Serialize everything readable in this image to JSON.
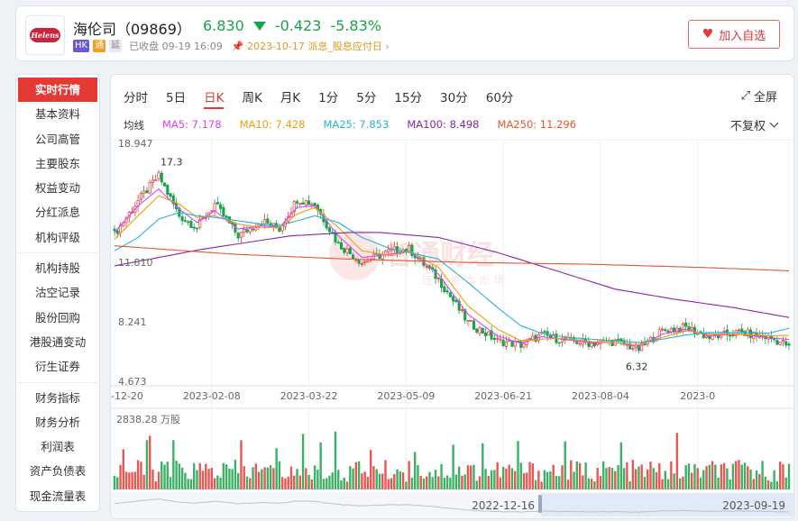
{
  "header": {
    "name": "海伦司（09869）",
    "price": "6.830",
    "change": "-0.423",
    "change_pct": "-5.83%",
    "tags": [
      "HK",
      "通",
      "延"
    ],
    "status": "已收盘 09-19 16:09",
    "dividend_text": "2023-10-17 派息_股息应付日",
    "favorite_label": "加入自选",
    "logo_text": "Helens",
    "up_color": "#e53935",
    "down_color": "#1aa34a"
  },
  "sidebar": {
    "groups": [
      [
        "实时行情",
        "基本资料",
        "公司高管",
        "主要股东",
        "权益变动",
        "分红派息",
        "机构评级"
      ],
      [
        "机构持股",
        "沽空记录",
        "股份回购",
        "港股通变动",
        "衍生证券"
      ],
      [
        "财务指标",
        "财务分析",
        "利润表",
        "资产负债表",
        "现金流量表"
      ]
    ],
    "active": "实时行情"
  },
  "chart": {
    "tabs": [
      "分时",
      "5日",
      "日K",
      "周K",
      "月K",
      "1分",
      "5分",
      "15分",
      "30分",
      "60分"
    ],
    "active_tab": "日K",
    "fullscreen_label": "全屏",
    "adjust_label": "不复权",
    "ma_title": "均线",
    "ma_items": [
      {
        "label": "MA5: 7.178",
        "color": "#e040fb"
      },
      {
        "label": "MA10: 7.428",
        "color": "#f39c12"
      },
      {
        "label": "MA25: 7.853",
        "color": "#26b5d9"
      },
      {
        "label": "MA100: 8.498",
        "color": "#8e24aa"
      },
      {
        "label": "MA250: 11.296",
        "color": "#e5562e"
      }
    ],
    "volume_label": "2838.28 万股",
    "watermark": "智通财经",
    "watermark_sub": "连 接 资 本 市 场",
    "range_start": "2022-12-16",
    "range_end": "2023-09-19"
  },
  "chart_data": {
    "type": "candlestick",
    "y_ticks": [
      18.947,
      11.81,
      8.241,
      4.673
    ],
    "x_ticks": [
      "-12-20",
      "2023-02-08",
      "2023-03-22",
      "2023-05-09",
      "2023-06-21",
      "2023-08-04",
      "2023-0"
    ],
    "annotations": {
      "high": "17.3",
      "low": "6.32"
    },
    "close_anchors": [
      [
        0,
        13.5
      ],
      [
        8,
        15.5
      ],
      [
        15,
        17.0
      ],
      [
        22,
        14.6
      ],
      [
        28,
        13.9
      ],
      [
        34,
        15.3
      ],
      [
        42,
        13.4
      ],
      [
        50,
        14.3
      ],
      [
        56,
        13.8
      ],
      [
        62,
        15.6
      ],
      [
        68,
        15.3
      ],
      [
        76,
        12.9
      ],
      [
        84,
        11.8
      ],
      [
        94,
        12.5
      ],
      [
        100,
        12.6
      ],
      [
        110,
        10.8
      ],
      [
        120,
        8.2
      ],
      [
        130,
        7.1
      ],
      [
        138,
        6.85
      ],
      [
        145,
        7.45
      ],
      [
        152,
        7.15
      ],
      [
        162,
        6.95
      ],
      [
        170,
        7.05
      ],
      [
        178,
        6.6
      ],
      [
        186,
        7.7
      ],
      [
        194,
        7.9
      ],
      [
        202,
        7.3
      ],
      [
        212,
        7.6
      ],
      [
        222,
        7.3
      ],
      [
        229,
        6.83
      ]
    ],
    "ma_anchors": {
      "MA5": [
        [
          0,
          13.6
        ],
        [
          8,
          15.2
        ],
        [
          15,
          16.2
        ],
        [
          22,
          15.0
        ],
        [
          28,
          14.2
        ],
        [
          34,
          14.9
        ],
        [
          42,
          13.8
        ],
        [
          50,
          14.0
        ],
        [
          56,
          13.9
        ],
        [
          62,
          15.1
        ],
        [
          68,
          15.2
        ],
        [
          76,
          13.4
        ],
        [
          84,
          12.1
        ],
        [
          94,
          12.3
        ],
        [
          100,
          12.5
        ],
        [
          110,
          11.1
        ],
        [
          120,
          8.7
        ],
        [
          130,
          7.4
        ],
        [
          138,
          6.95
        ],
        [
          145,
          7.35
        ],
        [
          152,
          7.2
        ],
        [
          162,
          7.0
        ],
        [
          170,
          7.0
        ],
        [
          178,
          6.75
        ],
        [
          186,
          7.5
        ],
        [
          194,
          7.8
        ],
        [
          202,
          7.4
        ],
        [
          212,
          7.5
        ],
        [
          222,
          7.3
        ],
        [
          229,
          7.18
        ]
      ],
      "MA10": [
        [
          0,
          13.2
        ],
        [
          8,
          14.6
        ],
        [
          15,
          15.8
        ],
        [
          22,
          15.3
        ],
        [
          28,
          14.5
        ],
        [
          34,
          14.6
        ],
        [
          42,
          14.1
        ],
        [
          50,
          13.9
        ],
        [
          56,
          13.9
        ],
        [
          62,
          14.7
        ],
        [
          68,
          15.1
        ],
        [
          76,
          13.9
        ],
        [
          84,
          12.5
        ],
        [
          94,
          12.2
        ],
        [
          100,
          12.5
        ],
        [
          110,
          11.5
        ],
        [
          120,
          9.2
        ],
        [
          130,
          7.8
        ],
        [
          138,
          7.1
        ],
        [
          145,
          7.2
        ],
        [
          152,
          7.25
        ],
        [
          162,
          7.05
        ],
        [
          170,
          7.0
        ],
        [
          178,
          6.85
        ],
        [
          186,
          7.3
        ],
        [
          194,
          7.7
        ],
        [
          202,
          7.5
        ],
        [
          212,
          7.5
        ],
        [
          222,
          7.4
        ],
        [
          229,
          7.43
        ]
      ],
      "MA25": [
        [
          0,
          12.5
        ],
        [
          8,
          13.3
        ],
        [
          15,
          14.4
        ],
        [
          22,
          14.8
        ],
        [
          28,
          14.6
        ],
        [
          34,
          14.5
        ],
        [
          42,
          14.3
        ],
        [
          50,
          14.1
        ],
        [
          56,
          14.0
        ],
        [
          62,
          14.3
        ],
        [
          68,
          14.6
        ],
        [
          76,
          14.2
        ],
        [
          84,
          13.3
        ],
        [
          94,
          12.6
        ],
        [
          100,
          12.4
        ],
        [
          110,
          12.0
        ],
        [
          120,
          10.6
        ],
        [
          130,
          9.1
        ],
        [
          138,
          8.0
        ],
        [
          145,
          7.55
        ],
        [
          152,
          7.35
        ],
        [
          162,
          7.2
        ],
        [
          170,
          7.1
        ],
        [
          178,
          7.0
        ],
        [
          186,
          7.2
        ],
        [
          194,
          7.45
        ],
        [
          202,
          7.6
        ],
        [
          212,
          7.6
        ],
        [
          222,
          7.55
        ],
        [
          229,
          7.85
        ]
      ],
      "MA100": [
        [
          0,
          11.6
        ],
        [
          30,
          12.6
        ],
        [
          60,
          13.4
        ],
        [
          80,
          13.6
        ],
        [
          90,
          13.6
        ],
        [
          110,
          13.3
        ],
        [
          130,
          12.4
        ],
        [
          150,
          11.3
        ],
        [
          170,
          10.2
        ],
        [
          190,
          9.6
        ],
        [
          210,
          9.1
        ],
        [
          229,
          8.5
        ]
      ],
      "MA250": [
        [
          0,
          12.8
        ],
        [
          40,
          12.3
        ],
        [
          80,
          12.0
        ],
        [
          120,
          11.8
        ],
        [
          160,
          11.7
        ],
        [
          200,
          11.5
        ],
        [
          229,
          11.3
        ]
      ]
    },
    "ylim": [
      4.673,
      18.947
    ],
    "volume_max": 2838.28,
    "volume_unit": "万股"
  }
}
